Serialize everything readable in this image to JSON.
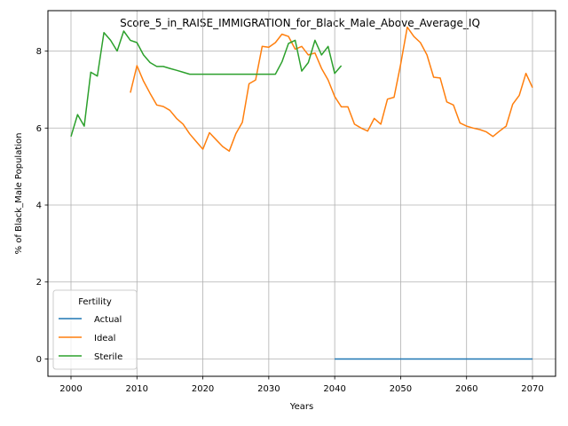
{
  "chart_data": {
    "type": "line",
    "title": "Score_5_in_RAISE_IMMIGRATION_for_Black_Male_Above_Average_IQ",
    "xlabel": "Years",
    "ylabel": "% of Black_Male Population",
    "xlim": [
      1996.5,
      2073.5
    ],
    "ylim": [
      -0.45,
      9.05
    ],
    "xticks": [
      2000,
      2010,
      2020,
      2030,
      2040,
      2050,
      2060,
      2070
    ],
    "yticks": [
      0,
      2,
      4,
      6,
      8
    ],
    "grid": true,
    "legend": {
      "title": "Fertility",
      "position": "lower-left",
      "entries": [
        "Actual",
        "Ideal",
        "Sterile"
      ]
    },
    "series": [
      {
        "name": "Actual",
        "color": "#1f77b4",
        "points": [
          [
            2040,
            0
          ],
          [
            2045,
            0
          ],
          [
            2050,
            0
          ],
          [
            2055,
            0
          ],
          [
            2060,
            0
          ],
          [
            2065,
            0
          ],
          [
            2070,
            0
          ]
        ]
      },
      {
        "name": "Ideal",
        "color": "#ff7f0e",
        "points": [
          [
            2009,
            6.92
          ],
          [
            2010,
            7.62
          ],
          [
            2011,
            7.22
          ],
          [
            2012,
            6.9
          ],
          [
            2013,
            6.6
          ],
          [
            2014,
            6.56
          ],
          [
            2015,
            6.46
          ],
          [
            2016,
            6.25
          ],
          [
            2017,
            6.1
          ],
          [
            2018,
            5.85
          ],
          [
            2019,
            5.65
          ],
          [
            2020,
            5.45
          ],
          [
            2021,
            5.88
          ],
          [
            2022,
            5.7
          ],
          [
            2023,
            5.52
          ],
          [
            2024,
            5.4
          ],
          [
            2025,
            5.85
          ],
          [
            2026,
            6.15
          ],
          [
            2027,
            7.15
          ],
          [
            2028,
            7.25
          ],
          [
            2029,
            8.12
          ],
          [
            2030,
            8.1
          ],
          [
            2031,
            8.22
          ],
          [
            2032,
            8.44
          ],
          [
            2033,
            8.38
          ],
          [
            2034,
            8.05
          ],
          [
            2035,
            8.12
          ],
          [
            2036,
            7.9
          ],
          [
            2037,
            7.95
          ],
          [
            2038,
            7.55
          ],
          [
            2039,
            7.25
          ],
          [
            2040,
            6.82
          ],
          [
            2041,
            6.55
          ],
          [
            2042,
            6.55
          ],
          [
            2043,
            6.1
          ],
          [
            2044,
            6.0
          ],
          [
            2045,
            5.92
          ],
          [
            2046,
            6.25
          ],
          [
            2047,
            6.1
          ],
          [
            2048,
            6.75
          ],
          [
            2049,
            6.8
          ],
          [
            2050,
            7.65
          ],
          [
            2051,
            8.62
          ],
          [
            2052,
            8.38
          ],
          [
            2053,
            8.22
          ],
          [
            2054,
            7.9
          ],
          [
            2055,
            7.32
          ],
          [
            2056,
            7.3
          ],
          [
            2057,
            6.68
          ],
          [
            2058,
            6.6
          ],
          [
            2059,
            6.13
          ],
          [
            2060,
            6.05
          ],
          [
            2061,
            6.0
          ],
          [
            2062,
            5.96
          ],
          [
            2063,
            5.9
          ],
          [
            2064,
            5.78
          ],
          [
            2065,
            5.92
          ],
          [
            2066,
            6.05
          ],
          [
            2067,
            6.62
          ],
          [
            2068,
            6.85
          ],
          [
            2069,
            7.42
          ],
          [
            2070,
            7.05
          ]
        ]
      },
      {
        "name": "Sterile",
        "color": "#2ca02c",
        "points": [
          [
            2000,
            5.78
          ],
          [
            2001,
            6.35
          ],
          [
            2002,
            6.05
          ],
          [
            2003,
            7.45
          ],
          [
            2004,
            7.35
          ],
          [
            2005,
            8.48
          ],
          [
            2006,
            8.28
          ],
          [
            2007,
            8.0
          ],
          [
            2008,
            8.52
          ],
          [
            2009,
            8.28
          ],
          [
            2010,
            8.22
          ],
          [
            2011,
            7.9
          ],
          [
            2012,
            7.7
          ],
          [
            2013,
            7.6
          ],
          [
            2014,
            7.6
          ],
          [
            2015,
            7.55
          ],
          [
            2016,
            7.5
          ],
          [
            2017,
            7.45
          ],
          [
            2018,
            7.4
          ],
          [
            2019,
            7.4
          ],
          [
            2020,
            7.4
          ],
          [
            2021,
            7.4
          ],
          [
            2022,
            7.4
          ],
          [
            2023,
            7.4
          ],
          [
            2024,
            7.4
          ],
          [
            2025,
            7.4
          ],
          [
            2026,
            7.4
          ],
          [
            2027,
            7.4
          ],
          [
            2028,
            7.4
          ],
          [
            2029,
            7.4
          ],
          [
            2030,
            7.4
          ],
          [
            2031,
            7.4
          ],
          [
            2032,
            7.72
          ],
          [
            2033,
            8.2
          ],
          [
            2034,
            8.28
          ],
          [
            2035,
            7.48
          ],
          [
            2036,
            7.7
          ],
          [
            2037,
            8.28
          ],
          [
            2038,
            7.9
          ],
          [
            2039,
            8.12
          ],
          [
            2040,
            7.42
          ],
          [
            2041,
            7.62
          ]
        ]
      }
    ]
  }
}
